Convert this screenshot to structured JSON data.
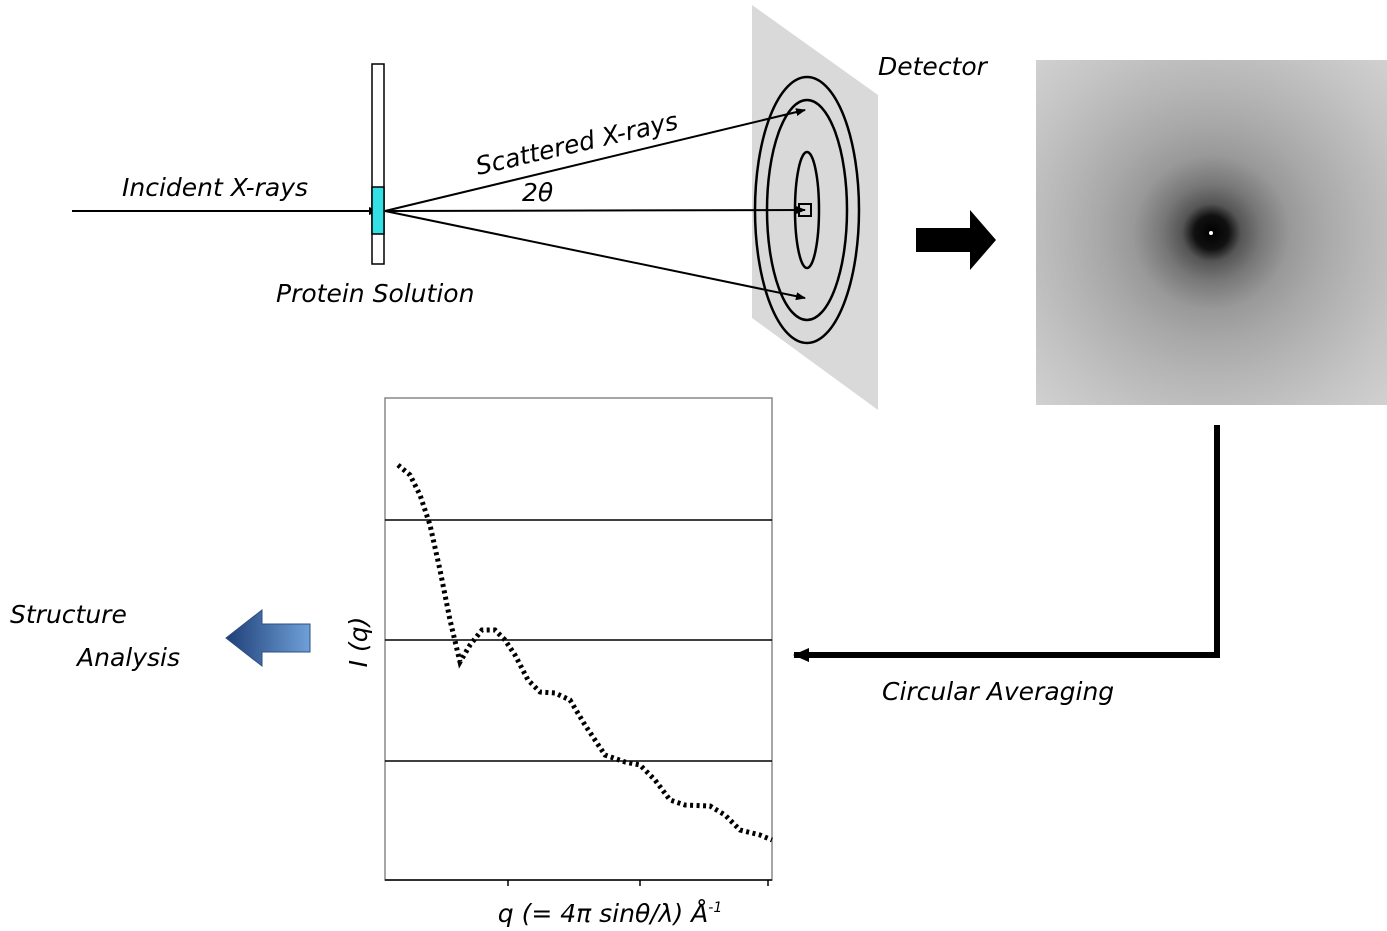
{
  "labels": {
    "detector": "Detector",
    "scattered": "Scattered X-rays",
    "angle": "2θ",
    "incident": "Incident X-rays",
    "sample": "Protein Solution",
    "analysis": [
      "Structure",
      "Analysis"
    ],
    "averaging": "Circular Averaging"
  },
  "plot": {
    "y_label": "I (q)",
    "x_label": {
      "main": "q (= 4π sinθ/λ) Å",
      "superscript": "-1"
    }
  }
}
